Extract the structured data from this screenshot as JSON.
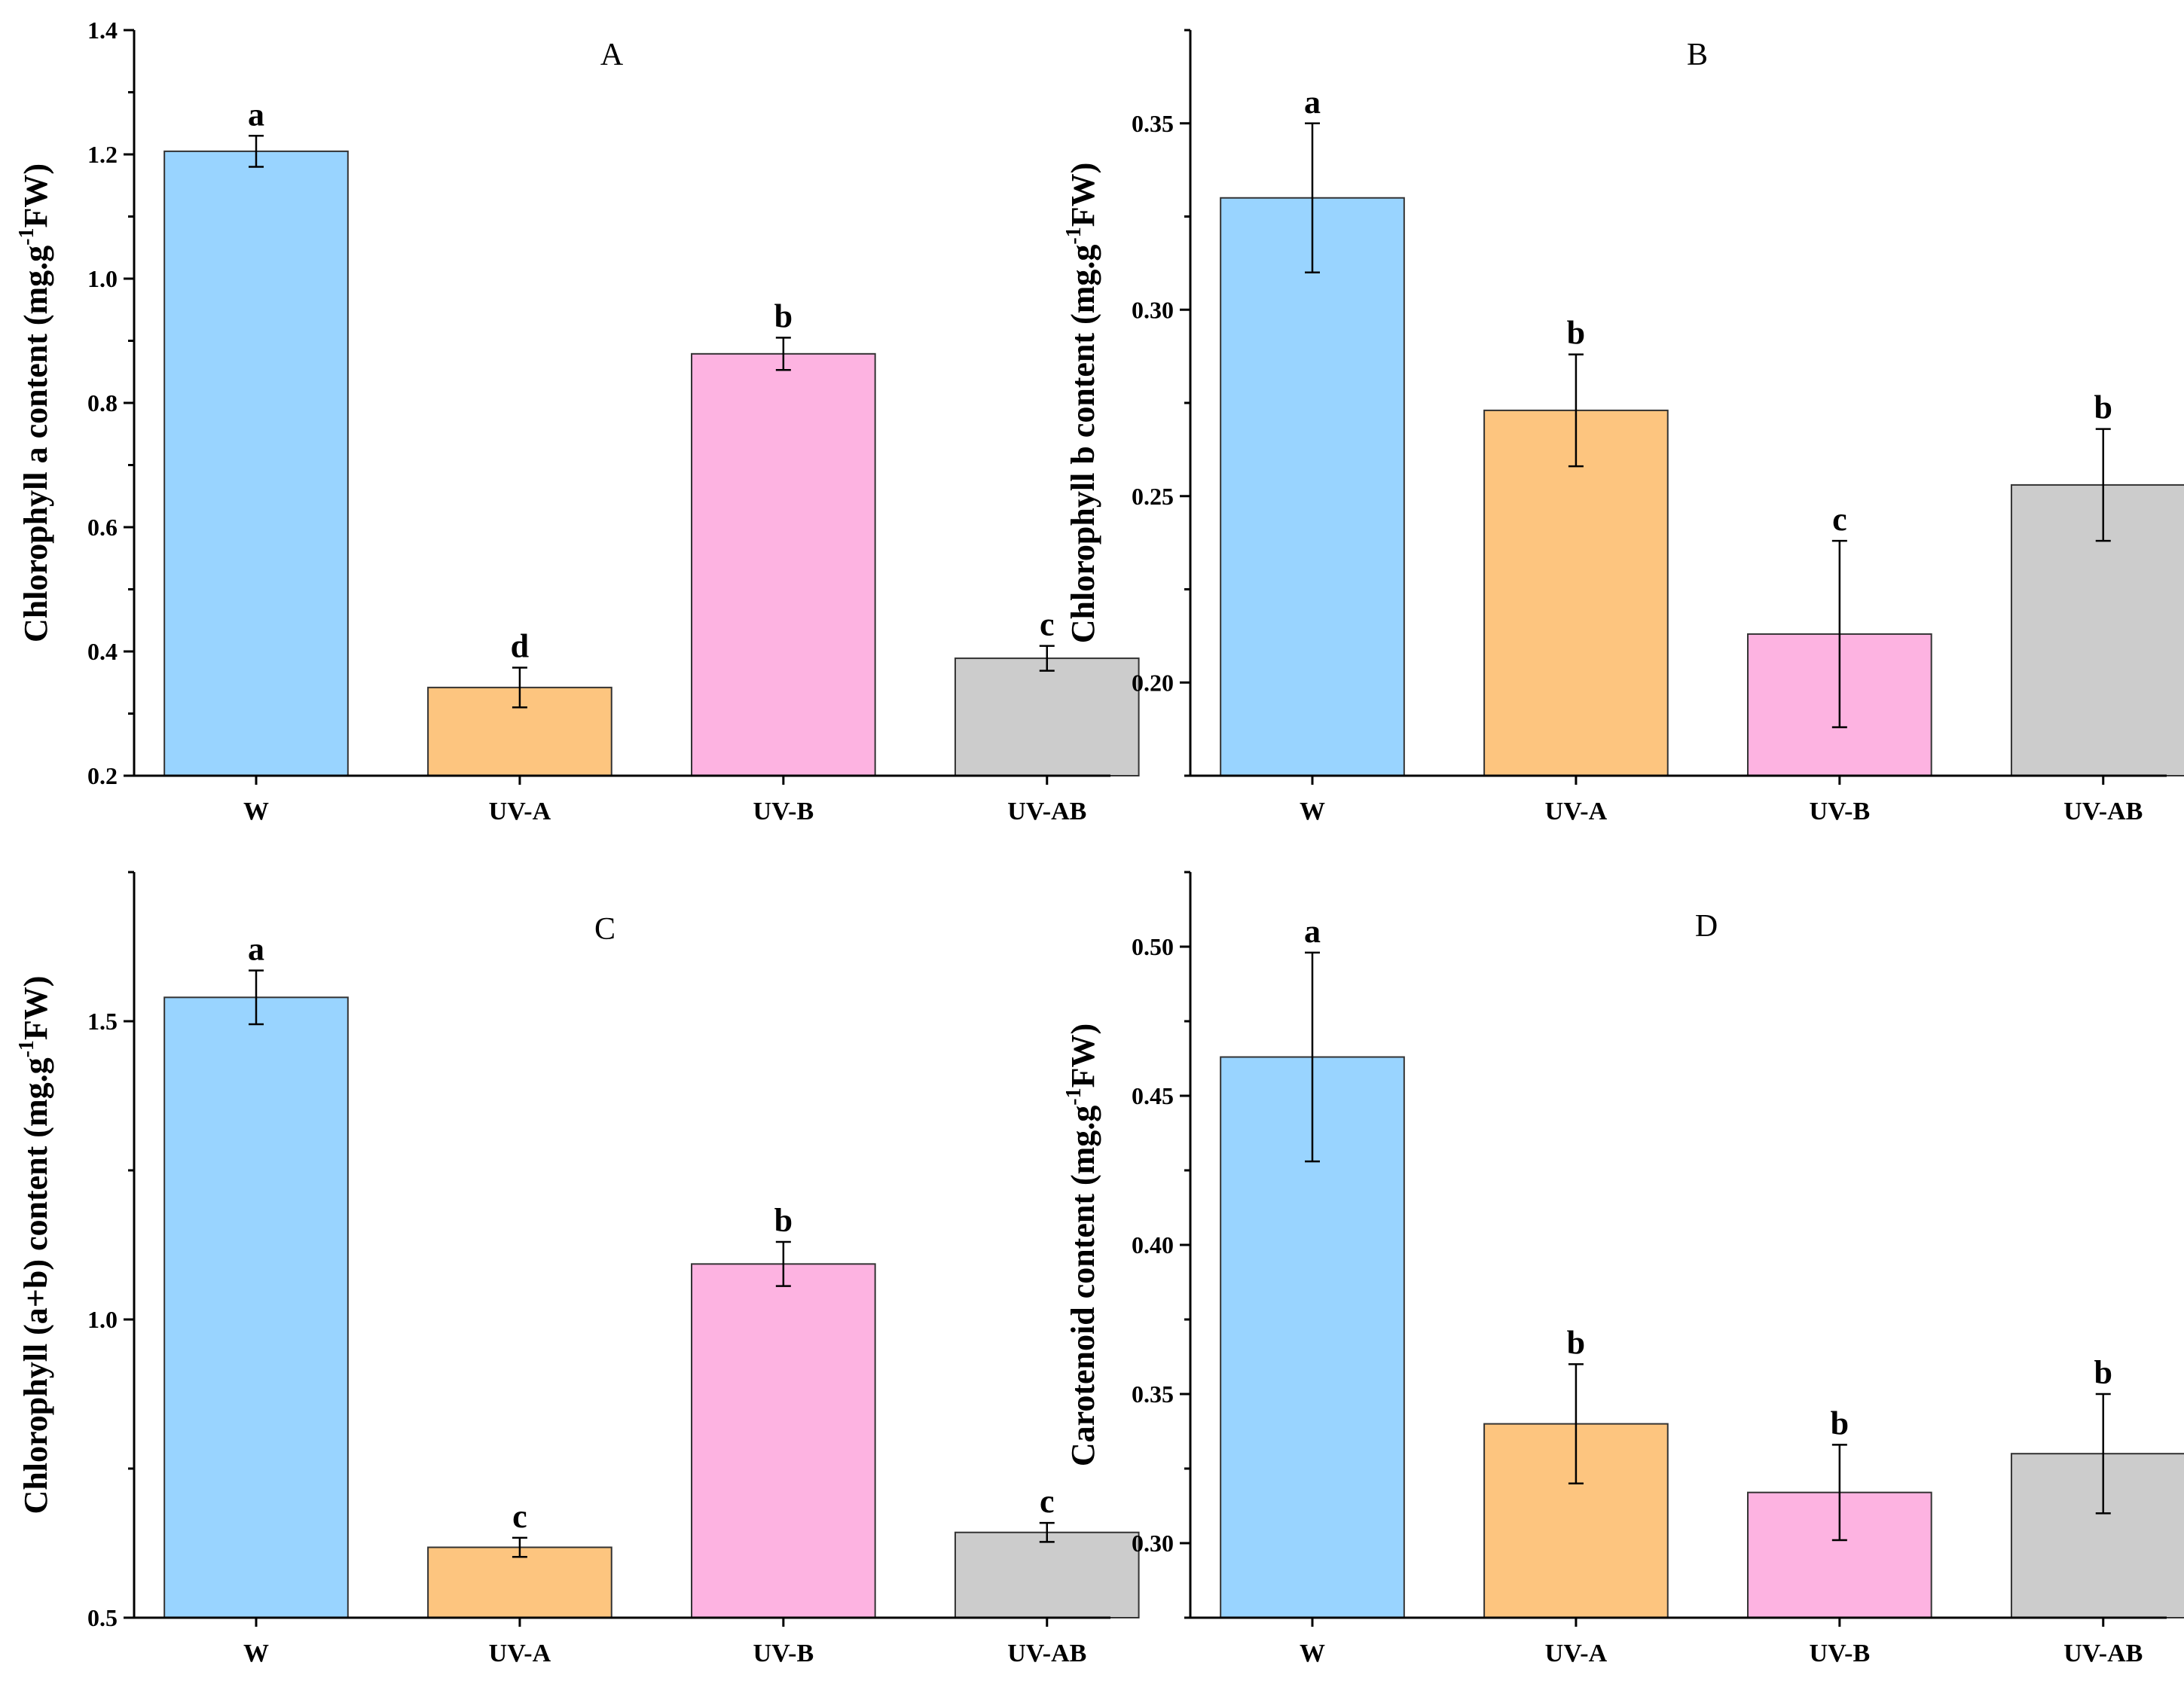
{
  "colors": {
    "W": "#99d4ff",
    "UV-A": "#fdc57f",
    "UV-B": "#fdb3e1",
    "UV-AB": "#cccccc"
  },
  "chart_data": [
    {
      "type": "bar",
      "title": "A",
      "ylabel": {
        "pre": "Chlorophyll a content (mg.g",
        "sup": "-1",
        "post": "FW)"
      },
      "categories": [
        "W",
        "UV-A",
        "UV-B",
        "UV-AB"
      ],
      "values": [
        1.205,
        0.342,
        0.879,
        0.389
      ],
      "errors": [
        0.025,
        0.032,
        0.026,
        0.02
      ],
      "letters": [
        "a",
        "d",
        "b",
        "c"
      ],
      "ylim": [
        0.2,
        1.4
      ],
      "yticks": [
        0.2,
        0.4,
        0.6,
        0.8,
        1.0,
        1.2,
        1.4
      ],
      "tick_decimals": 1,
      "minor_ticks": true
    },
    {
      "type": "bar",
      "title": "B",
      "ylabel": {
        "pre": "Chlorophyll b content (mg.g",
        "sup": "-1",
        "post": "FW)"
      },
      "categories": [
        "W",
        "UV-A",
        "UV-B",
        "UV-AB"
      ],
      "values": [
        0.33,
        0.273,
        0.213,
        0.253
      ],
      "errors": [
        0.02,
        0.015,
        0.025,
        0.015
      ],
      "letters": [
        "a",
        "b",
        "c",
        "b"
      ],
      "ylim": [
        0.175,
        0.375
      ],
      "yticks": [
        0.2,
        0.25,
        0.3,
        0.35
      ],
      "tick_decimals": 2,
      "minor_ticks": true
    },
    {
      "type": "bar",
      "title": "C",
      "ylabel": {
        "pre": "Chlorophyll (a+b) content (mg.g",
        "sup": "-1",
        "post": "FW)"
      },
      "categories": [
        "W",
        "UV-A",
        "UV-B",
        "UV-AB"
      ],
      "values": [
        1.54,
        0.618,
        1.093,
        0.643
      ],
      "errors": [
        0.045,
        0.016,
        0.037,
        0.016
      ],
      "letters": [
        "a",
        "c",
        "b",
        "c"
      ],
      "ylim": [
        0.5,
        1.75
      ],
      "yticks": [
        0.5,
        1.0,
        1.5
      ],
      "tick_decimals": 1,
      "minor_ticks": true
    },
    {
      "type": "bar",
      "title": "D",
      "ylabel": {
        "pre": "Carotenoid content (mg.g",
        "sup": "-1",
        "post": "FW)"
      },
      "categories": [
        "W",
        "UV-A",
        "UV-B",
        "UV-AB"
      ],
      "values": [
        0.463,
        0.34,
        0.317,
        0.33
      ],
      "errors": [
        0.035,
        0.02,
        0.016,
        0.02
      ],
      "letters": [
        "a",
        "b",
        "b",
        "b"
      ],
      "ylim": [
        0.275,
        0.525
      ],
      "yticks": [
        0.3,
        0.35,
        0.4,
        0.45,
        0.5
      ],
      "tick_decimals": 2,
      "minor_ticks": true
    }
  ]
}
